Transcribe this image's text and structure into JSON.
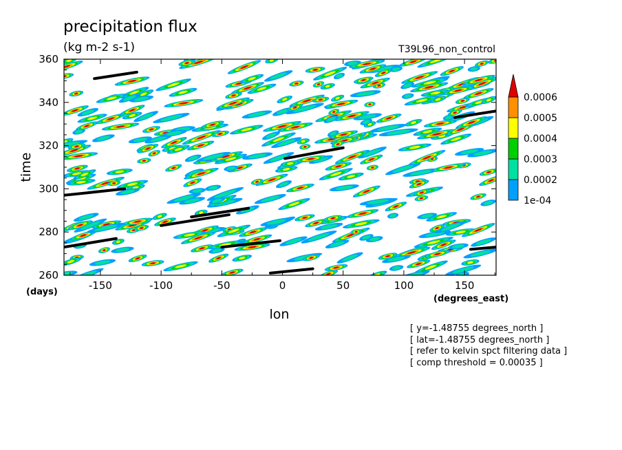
{
  "header": {
    "title": "precipitation flux",
    "units": "(kg m-2 s-1)",
    "experiment": "T39L96_non_control"
  },
  "chart_data": {
    "type": "heatmap",
    "xlabel": "lon",
    "ylabel": "time",
    "x_units": "(degrees_east)",
    "y_units": "(days)",
    "xlim": [
      -180,
      176
    ],
    "ylim": [
      260,
      360
    ],
    "x_ticks": [
      -150,
      -100,
      -50,
      0,
      50,
      100,
      150
    ],
    "y_ticks": [
      260,
      280,
      300,
      320,
      340,
      360
    ],
    "x_tick_labels": [
      "-150",
      "-100",
      "-50",
      "0",
      "50",
      "100",
      "150"
    ],
    "y_tick_labels": [
      "260",
      "280",
      "300",
      "320",
      "340",
      "360"
    ],
    "grid": false,
    "legend_position": "right",
    "colorbar": {
      "levels": [
        0.0001,
        0.0002,
        0.0003,
        0.0004,
        0.0005,
        0.0006
      ],
      "labels": [
        "1e-04",
        "0.0002",
        "0.0003",
        "0.0004",
        "0.0005",
        "0.0006"
      ],
      "colors": [
        "#00a0ff",
        "#00e0a0",
        "#00d000",
        "#ffff00",
        "#ff9000",
        "#e00000"
      ],
      "over_color": "#e00000"
    },
    "field": {
      "pattern": "scattered eastward-propagating precipitation streaks",
      "note": "individual filled contours not enumerable"
    },
    "kelvin_tracks": [
      {
        "lon": [
          -180,
          -137
        ],
        "time": [
          273,
          277
        ]
      },
      {
        "lon": [
          -100,
          -44
        ],
        "time": [
          283,
          288
        ]
      },
      {
        "lon": [
          -75,
          -28
        ],
        "time": [
          287,
          291
        ]
      },
      {
        "lon": [
          -180,
          -130
        ],
        "time": [
          297,
          300
        ]
      },
      {
        "lon": [
          -155,
          -120
        ],
        "time": [
          351,
          354
        ]
      },
      {
        "lon": [
          2,
          50
        ],
        "time": [
          314,
          319
        ]
      },
      {
        "lon": [
          -50,
          -2
        ],
        "time": [
          273,
          276
        ]
      },
      {
        "lon": [
          -10,
          25
        ],
        "time": [
          261,
          263
        ]
      },
      {
        "lon": [
          142,
          176
        ],
        "time": [
          333,
          336
        ]
      },
      {
        "lon": [
          155,
          176
        ],
        "time": [
          272,
          273
        ]
      }
    ]
  },
  "annotations": [
    "[ y=-1.48755 degrees_north ]",
    "[ lat=-1.48755 degrees_north ]",
    "[ refer to kelvin spct filtering data ]",
    "[ comp threshold = 0.00035 ]"
  ]
}
